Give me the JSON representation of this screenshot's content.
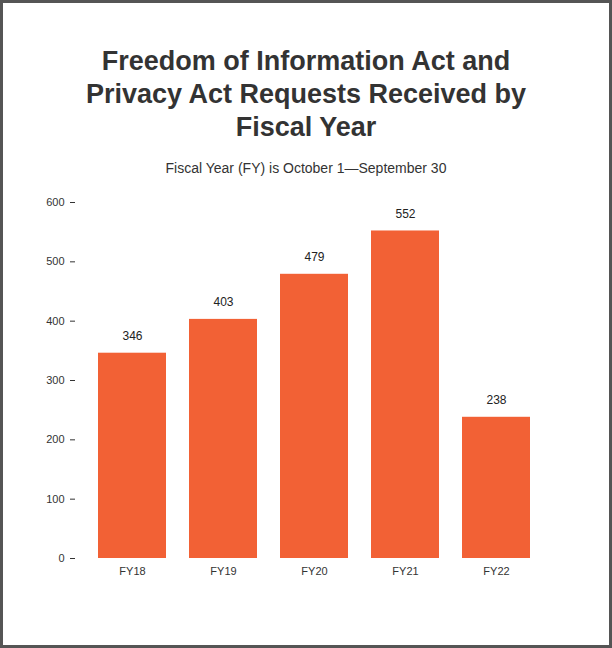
{
  "chart_data": {
    "type": "bar",
    "title": "Freedom of Information Act and Privacy Act Requests Received by Fiscal Year",
    "subtitle": "Fiscal Year (FY) is October 1—September 30",
    "categories": [
      "FY18",
      "FY19",
      "FY20",
      "FY21",
      "FY22"
    ],
    "values": [
      346,
      403,
      479,
      552,
      238
    ],
    "color": "#f26135",
    "ylim": [
      0,
      600
    ],
    "yticks": [
      0,
      100,
      200,
      300,
      400,
      500,
      600
    ],
    "grid": false,
    "data_labels": true
  }
}
